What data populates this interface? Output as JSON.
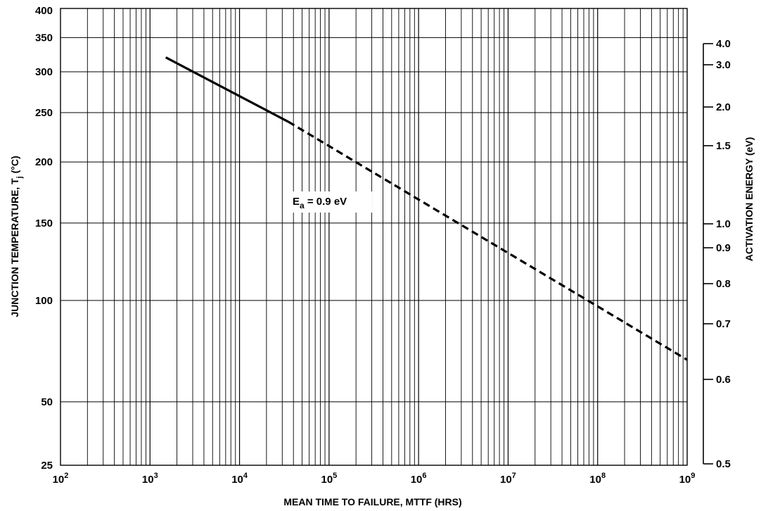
{
  "chart_data": {
    "type": "line",
    "title": "",
    "xlabel": "MEAN TIME TO FAILURE, MTTF (HRS)",
    "ylabel_left": "JUNCTION TEMPERATURE, Tj (°C)",
    "ylabel_left_main": "JUNCTION TEMPERATURE, T",
    "ylabel_left_sub": "j",
    "ylabel_left_unit": " (°C)",
    "ylabel_right": "ACTIVATION ENERGY (eV)",
    "x_scale": "log",
    "xlim": [
      100,
      1000000000
    ],
    "x_ticks": [
      {
        "value": 100,
        "base": "10",
        "exp": "2"
      },
      {
        "value": 1000,
        "base": "10",
        "exp": "3"
      },
      {
        "value": 10000,
        "base": "10",
        "exp": "4"
      },
      {
        "value": 100000,
        "base": "10",
        "exp": "5"
      },
      {
        "value": 1000000,
        "base": "10",
        "exp": "6"
      },
      {
        "value": 10000000,
        "base": "10",
        "exp": "7"
      },
      {
        "value": 100000000,
        "base": "10",
        "exp": "8"
      },
      {
        "value": 1000000000,
        "base": "10",
        "exp": "9"
      }
    ],
    "y_scale": "reciprocal absolute temperature (Arrhenius)",
    "ylim": [
      25,
      400
    ],
    "y_ticks": [
      "400",
      "350",
      "300",
      "250",
      "200",
      "150",
      "100",
      "50",
      "25"
    ],
    "y_ticks_right": [
      "4.0",
      "3.0",
      "2.0",
      "1.5",
      "1.0",
      "0.9",
      "0.8",
      "0.7",
      "0.6",
      "0.5"
    ],
    "grid": true,
    "series": [
      {
        "name": "Ea = 0.9 eV",
        "label_main": "E",
        "label_sub": "a",
        "label_rest": " = 0.9 eV",
        "points": [
          {
            "x": 1500,
            "y": 320
          },
          {
            "x": 35000,
            "y": 240
          },
          {
            "x": 1000000000,
            "y": 69
          }
        ],
        "solid_until_x": 35000,
        "color": "#000000"
      }
    ]
  }
}
